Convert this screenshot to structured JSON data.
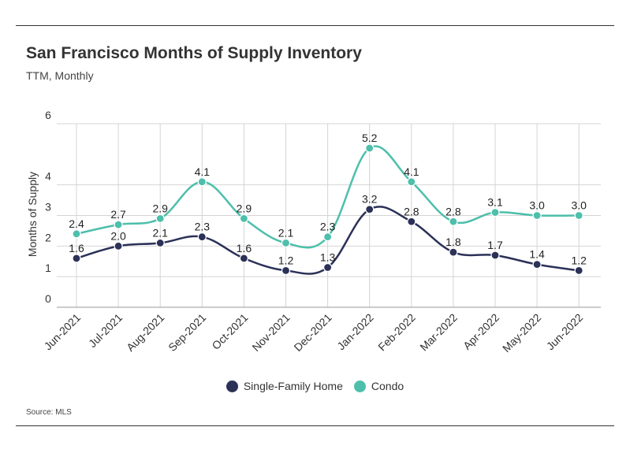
{
  "header": {
    "title": "San Francisco Months of Supply Inventory",
    "subtitle": "TTM, Monthly"
  },
  "source": "Source:  MLS",
  "colors": {
    "single_family": "#2b3157",
    "condo": "#4dbfab",
    "grid": "#d0d0d0",
    "text": "#333333"
  },
  "chart_data": {
    "type": "line",
    "title": "San Francisco Months of Supply Inventory",
    "subtitle": "TTM, Monthly",
    "xlabel": "",
    "ylabel": "Months of Supply",
    "ylim": [
      0,
      6
    ],
    "yticks": [
      0,
      1,
      2,
      3,
      4,
      6
    ],
    "grid": true,
    "legend_position": "bottom",
    "categories": [
      "Jun-2021",
      "Jul-2021",
      "Aug-2021",
      "Sep-2021",
      "Oct-2021",
      "Nov-2021",
      "Dec-2021",
      "Jan-2022",
      "Feb-2022",
      "Mar-2022",
      "Apr-2022",
      "May-2022",
      "Jun-2022"
    ],
    "series": [
      {
        "name": "Single-Family Home",
        "color": "#2b3157",
        "values": [
          1.6,
          2.0,
          2.1,
          2.3,
          1.6,
          1.2,
          1.3,
          3.2,
          2.8,
          1.8,
          1.7,
          1.4,
          1.2
        ],
        "labels": [
          "1.6",
          "2.0",
          "2.1",
          "2.3",
          "1.6",
          "1.2",
          "1.3",
          "3.2",
          "2.8",
          "1.8",
          "1.7",
          "1.4",
          "1.2"
        ]
      },
      {
        "name": "Condo",
        "color": "#4dbfab",
        "values": [
          2.4,
          2.7,
          2.9,
          4.1,
          2.9,
          2.1,
          2.3,
          5.2,
          4.1,
          2.8,
          3.1,
          3.0,
          3.0
        ],
        "labels": [
          "2.4",
          "2.7",
          "2.9",
          "4.1",
          "2.9",
          "2.1",
          "2.3",
          "5.2",
          "4.1",
          "2.8",
          "3.1",
          "3.0",
          "3.0"
        ]
      }
    ]
  }
}
